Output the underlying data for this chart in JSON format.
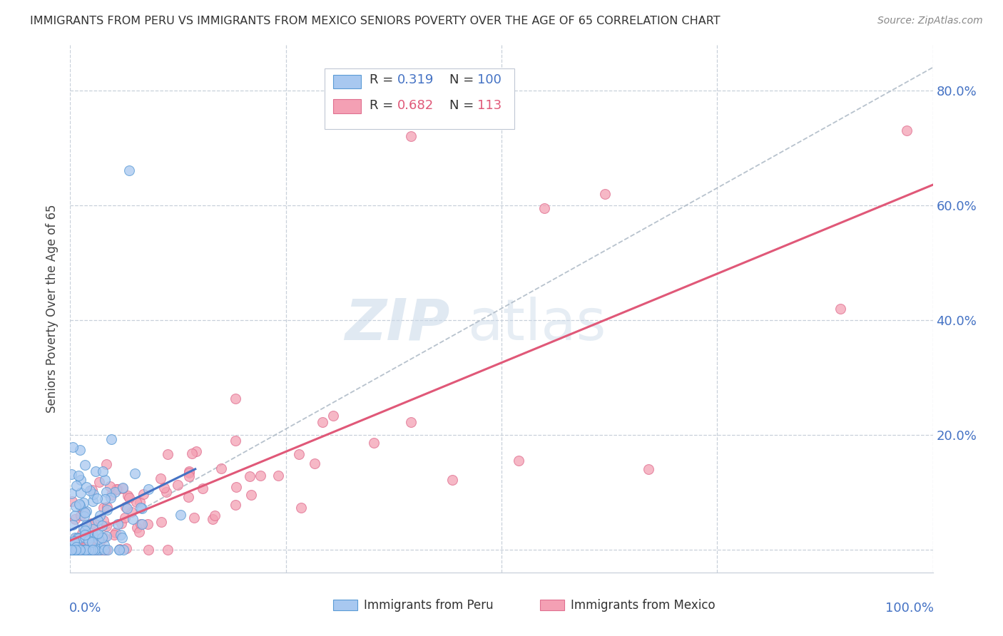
{
  "title": "IMMIGRANTS FROM PERU VS IMMIGRANTS FROM MEXICO SENIORS POVERTY OVER THE AGE OF 65 CORRELATION CHART",
  "source": "Source: ZipAtlas.com",
  "ylabel": "Seniors Poverty Over the Age of 65",
  "yticks": [
    0.0,
    0.2,
    0.4,
    0.6,
    0.8
  ],
  "ytick_labels": [
    "",
    "20.0%",
    "40.0%",
    "60.0%",
    "80.0%"
  ],
  "xlim": [
    0.0,
    1.0
  ],
  "ylim": [
    -0.04,
    0.88
  ],
  "legend_peru_R": "0.319",
  "legend_peru_N": "100",
  "legend_mexico_R": "0.682",
  "legend_mexico_N": "113",
  "color_peru_fill": "#a8c8f0",
  "color_peru_edge": "#5b9bd5",
  "color_peru_line": "#4472c4",
  "color_mexico_fill": "#f4a0b4",
  "color_mexico_edge": "#e07090",
  "color_mexico_line": "#e05878",
  "color_diagonal": "#b0bcc8",
  "color_axis_labels": "#4472c4",
  "color_title": "#333333",
  "color_source": "#888888",
  "color_watermark_zip": "#c8d8e8",
  "color_watermark_atlas": "#c8d8e8"
}
